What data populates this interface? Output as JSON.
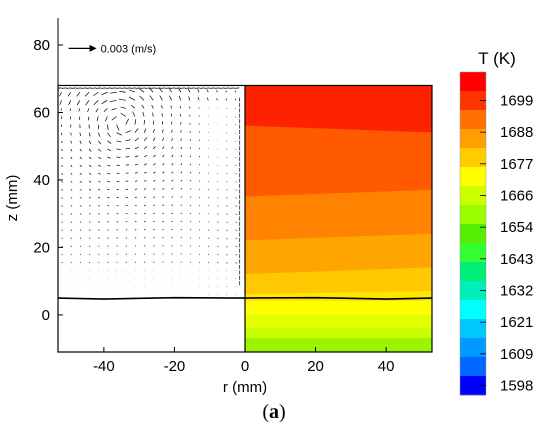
{
  "chart_data": {
    "type": "heatmap",
    "title": "",
    "caption": {
      "open": "(",
      "letter": "a",
      "close": ")"
    },
    "xlabel": "r (mm)",
    "ylabel": "z (mm)",
    "xlim": [
      -53,
      53
    ],
    "ylim": [
      -11,
      88
    ],
    "x_ticks": [
      -40,
      -20,
      0,
      20,
      40
    ],
    "y_ticks": [
      0,
      20,
      40,
      60,
      80
    ],
    "reference_vector": {
      "label": "0.003 (m/s)",
      "x": -50,
      "z": 79
    },
    "melt_top_z": 68,
    "interface_z": [
      [
        0,
        5
      ],
      [
        20,
        5.1
      ],
      [
        40,
        4.7
      ],
      [
        53,
        5
      ]
    ],
    "colorbar": {
      "title": "T (K)",
      "ticks": [
        "1699",
        "1688",
        "1677",
        "1666",
        "1654",
        "1643",
        "1632",
        "1621",
        "1609",
        "1598"
      ],
      "colors": [
        "#ff0000",
        "#ff3300",
        "#ff7000",
        "#ffa000",
        "#ffcc00",
        "#ffff00",
        "#ccff00",
        "#99ff00",
        "#55ee00",
        "#33ff33",
        "#00ee77",
        "#00eebb",
        "#00ffff",
        "#00c8ff",
        "#0099ff",
        "#0066ff",
        "#0000ff"
      ]
    },
    "temperature_bands": [
      {
        "z_low_left": 68,
        "z_low_right": 68,
        "z_high_left": 68,
        "z_high_right": 68,
        "color": "#ff0000"
      },
      {
        "z_low_left": 56,
        "z_low_right": 54,
        "z_high_left": 68,
        "z_high_right": 68,
        "color": "#ff2200"
      },
      {
        "z_low_left": 35,
        "z_low_right": 37,
        "z_high_left": 56,
        "z_high_right": 54,
        "color": "#ff5a00"
      },
      {
        "z_low_left": 22,
        "z_low_right": 24,
        "z_high_left": 35,
        "z_high_right": 37,
        "color": "#ff8200"
      },
      {
        "z_low_left": 12,
        "z_low_right": 14,
        "z_high_left": 22,
        "z_high_right": 24,
        "color": "#ffa500"
      },
      {
        "z_low_left": 6,
        "z_low_right": 7,
        "z_high_left": 12,
        "z_high_right": 14,
        "color": "#ffc800"
      },
      {
        "z_low_left": 4,
        "z_low_right": 4,
        "z_high_left": 6,
        "z_high_right": 7,
        "color": "#ffe600"
      },
      {
        "z_low_left": 0,
        "z_low_right": 0,
        "z_high_left": 4,
        "z_high_right": 4,
        "color": "#ffff00"
      },
      {
        "z_low_left": -4,
        "z_low_right": -4,
        "z_high_left": 0,
        "z_high_right": 0,
        "color": "#e6ff00"
      },
      {
        "z_low_left": -7,
        "z_low_right": -7,
        "z_high_left": -4,
        "z_high_right": -4,
        "color": "#c8ff00"
      },
      {
        "z_low_left": -11,
        "z_low_right": -11,
        "z_high_left": -7,
        "z_high_right": -7,
        "color": "#9bf500"
      }
    ]
  }
}
